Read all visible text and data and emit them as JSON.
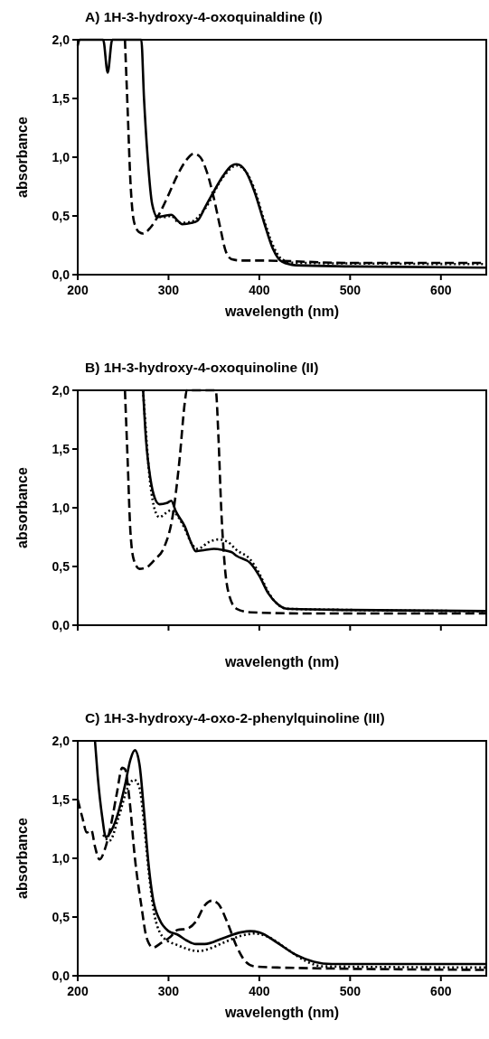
{
  "chart_data": [
    {
      "type": "line",
      "title": "A) 1H-3-hydroxy-4-oxoquinaldine (I)",
      "xlabel": "wavelength (nm)",
      "ylabel": "absorbance",
      "xlim": [
        200,
        650
      ],
      "xticks": [
        200,
        300,
        400,
        500,
        600
      ],
      "ylim": [
        0,
        2
      ],
      "yticks": [
        {
          "value": 0,
          "label": "0,0"
        },
        {
          "value": 0.5,
          "label": "0,5"
        },
        {
          "value": 1,
          "label": "1,0"
        },
        {
          "value": 1.5,
          "label": "1,5"
        },
        {
          "value": 2,
          "label": "2,0"
        }
      ],
      "grid": false,
      "series": [
        {
          "color": "#000000",
          "line_style": "solid",
          "x": [
            200,
            202,
            228,
            233,
            238,
            270,
            273,
            277,
            282,
            288,
            295,
            303,
            310,
            315,
            325,
            332,
            340,
            350,
            360,
            370,
            375,
            385,
            395,
            405,
            415,
            425,
            440,
            500,
            650
          ],
          "values": [
            1.95,
            2.0,
            2.0,
            1.72,
            2.0,
            2.0,
            1.5,
            1.0,
            0.6,
            0.49,
            0.5,
            0.51,
            0.46,
            0.43,
            0.44,
            0.46,
            0.57,
            0.71,
            0.84,
            0.93,
            0.94,
            0.88,
            0.7,
            0.45,
            0.22,
            0.11,
            0.08,
            0.07,
            0.06
          ]
        },
        {
          "color": "#000000",
          "line_style": "dotted",
          "x": [
            285,
            295,
            303,
            312,
            325,
            340,
            360,
            375,
            385,
            395,
            405,
            415,
            425,
            440,
            650
          ],
          "values": [
            0.5,
            0.49,
            0.5,
            0.44,
            0.45,
            0.56,
            0.83,
            0.93,
            0.88,
            0.72,
            0.47,
            0.25,
            0.13,
            0.1,
            0.09
          ]
        },
        {
          "color": "#000000",
          "line_style": "dashed",
          "x": [
            252,
            255,
            258,
            262,
            268,
            272,
            280,
            290,
            300,
            310,
            320,
            328,
            335,
            342,
            350,
            357,
            363,
            370,
            380,
            400,
            500,
            650
          ],
          "values": [
            2.0,
            1.4,
            0.8,
            0.45,
            0.36,
            0.35,
            0.4,
            0.52,
            0.68,
            0.85,
            0.98,
            1.03,
            1.0,
            0.88,
            0.65,
            0.4,
            0.2,
            0.13,
            0.12,
            0.12,
            0.1,
            0.1
          ]
        }
      ]
    },
    {
      "type": "line",
      "title": "B) 1H-3-hydroxy-4-oxoquinoline (II)",
      "xlabel": "wavelength (nm)",
      "ylabel": "absorbance",
      "xlim": [
        200,
        650
      ],
      "xticks": [
        200,
        300,
        400,
        500,
        600
      ],
      "ylim": [
        0,
        2
      ],
      "yticks": [
        {
          "value": 0,
          "label": "0,0"
        },
        {
          "value": 0.5,
          "label": "0,5"
        },
        {
          "value": 1,
          "label": "1,0"
        },
        {
          "value": 1.5,
          "label": "1,5"
        },
        {
          "value": 2,
          "label": "2,0"
        }
      ],
      "tick_labels": "y",
      "grid": false,
      "series": [
        {
          "color": "#000000",
          "line_style": "solid",
          "x": [
            272,
            275,
            280,
            285,
            290,
            298,
            303,
            308,
            318,
            325,
            330,
            340,
            350,
            360,
            370,
            375,
            390,
            400,
            410,
            420,
            430,
            500,
            650
          ],
          "values": [
            2.0,
            1.6,
            1.25,
            1.08,
            1.03,
            1.04,
            1.06,
            0.97,
            0.84,
            0.7,
            0.63,
            0.64,
            0.65,
            0.64,
            0.62,
            0.59,
            0.53,
            0.42,
            0.27,
            0.18,
            0.14,
            0.13,
            0.12
          ]
        },
        {
          "color": "#000000",
          "line_style": "dotted",
          "x": [
            272,
            280,
            285,
            290,
            298,
            303,
            310,
            318,
            325,
            332,
            345,
            355,
            365,
            375,
            390,
            400,
            410,
            420,
            430,
            500,
            650
          ],
          "values": [
            2.0,
            1.2,
            0.98,
            0.92,
            0.96,
            0.98,
            0.93,
            0.82,
            0.7,
            0.65,
            0.71,
            0.73,
            0.71,
            0.64,
            0.56,
            0.44,
            0.28,
            0.18,
            0.14,
            0.13,
            0.12
          ]
        },
        {
          "color": "#000000",
          "line_style": "dashed",
          "x": [
            252,
            255,
            258,
            262,
            268,
            275,
            285,
            295,
            305,
            312,
            318,
            320,
            352,
            355,
            358,
            362,
            367,
            375,
            390,
            450,
            650
          ],
          "values": [
            2.0,
            1.4,
            0.8,
            0.55,
            0.48,
            0.49,
            0.56,
            0.66,
            0.95,
            1.4,
            1.9,
            2.0,
            2.0,
            1.6,
            1.0,
            0.5,
            0.25,
            0.14,
            0.11,
            0.1,
            0.1
          ]
        }
      ]
    },
    {
      "type": "line",
      "title": "C) 1H-3-hydroxy-4-oxo-2-phenylquinoline (III)",
      "xlabel": "wavelength (nm)",
      "ylabel": "absorbance",
      "xlim": [
        200,
        650
      ],
      "xticks": [
        200,
        300,
        400,
        500,
        600
      ],
      "ylim": [
        0,
        2
      ],
      "yticks": [
        {
          "value": 0,
          "label": "0,0"
        },
        {
          "value": 0.5,
          "label": "0,5"
        },
        {
          "value": 1,
          "label": "1,0"
        },
        {
          "value": 1.5,
          "label": "1,5"
        },
        {
          "value": 2,
          "label": "2,0"
        }
      ],
      "grid": false,
      "series": [
        {
          "color": "#000000",
          "line_style": "solid",
          "x": [
            219,
            222,
            227,
            231,
            238,
            245,
            252,
            258,
            263,
            268,
            273,
            278,
            283,
            290,
            300,
            310,
            320,
            330,
            340,
            360,
            380,
            390,
            400,
            420,
            440,
            460,
            480,
            650
          ],
          "values": [
            2.0,
            1.7,
            1.35,
            1.18,
            1.25,
            1.4,
            1.62,
            1.84,
            1.92,
            1.8,
            1.4,
            0.95,
            0.65,
            0.48,
            0.38,
            0.35,
            0.3,
            0.27,
            0.27,
            0.32,
            0.37,
            0.38,
            0.37,
            0.28,
            0.18,
            0.12,
            0.1,
            0.1
          ]
        },
        {
          "color": "#000000",
          "line_style": "dotted",
          "x": [
            228,
            235,
            245,
            255,
            262,
            268,
            273,
            278,
            285,
            295,
            310,
            320,
            333,
            345,
            360,
            380,
            395,
            410,
            430,
            450,
            470,
            650
          ],
          "values": [
            1.2,
            1.15,
            1.35,
            1.6,
            1.67,
            1.6,
            1.3,
            0.9,
            0.5,
            0.32,
            0.26,
            0.23,
            0.21,
            0.23,
            0.28,
            0.34,
            0.36,
            0.33,
            0.23,
            0.13,
            0.08,
            0.07
          ]
        },
        {
          "color": "#000000",
          "line_style": "dashed",
          "x": [
            200,
            205,
            210,
            215,
            219,
            224,
            230,
            237,
            243,
            249,
            252,
            257,
            263,
            270,
            276,
            283,
            292,
            302,
            310,
            320,
            330,
            340,
            348,
            355,
            365,
            375,
            385,
            395,
            420,
            650
          ],
          "values": [
            1.5,
            1.35,
            1.22,
            1.24,
            1.1,
            0.99,
            1.08,
            1.3,
            1.55,
            1.77,
            1.76,
            1.5,
            1.0,
            0.6,
            0.32,
            0.24,
            0.28,
            0.33,
            0.39,
            0.4,
            0.46,
            0.6,
            0.64,
            0.61,
            0.45,
            0.25,
            0.12,
            0.08,
            0.07,
            0.05
          ]
        }
      ]
    }
  ]
}
